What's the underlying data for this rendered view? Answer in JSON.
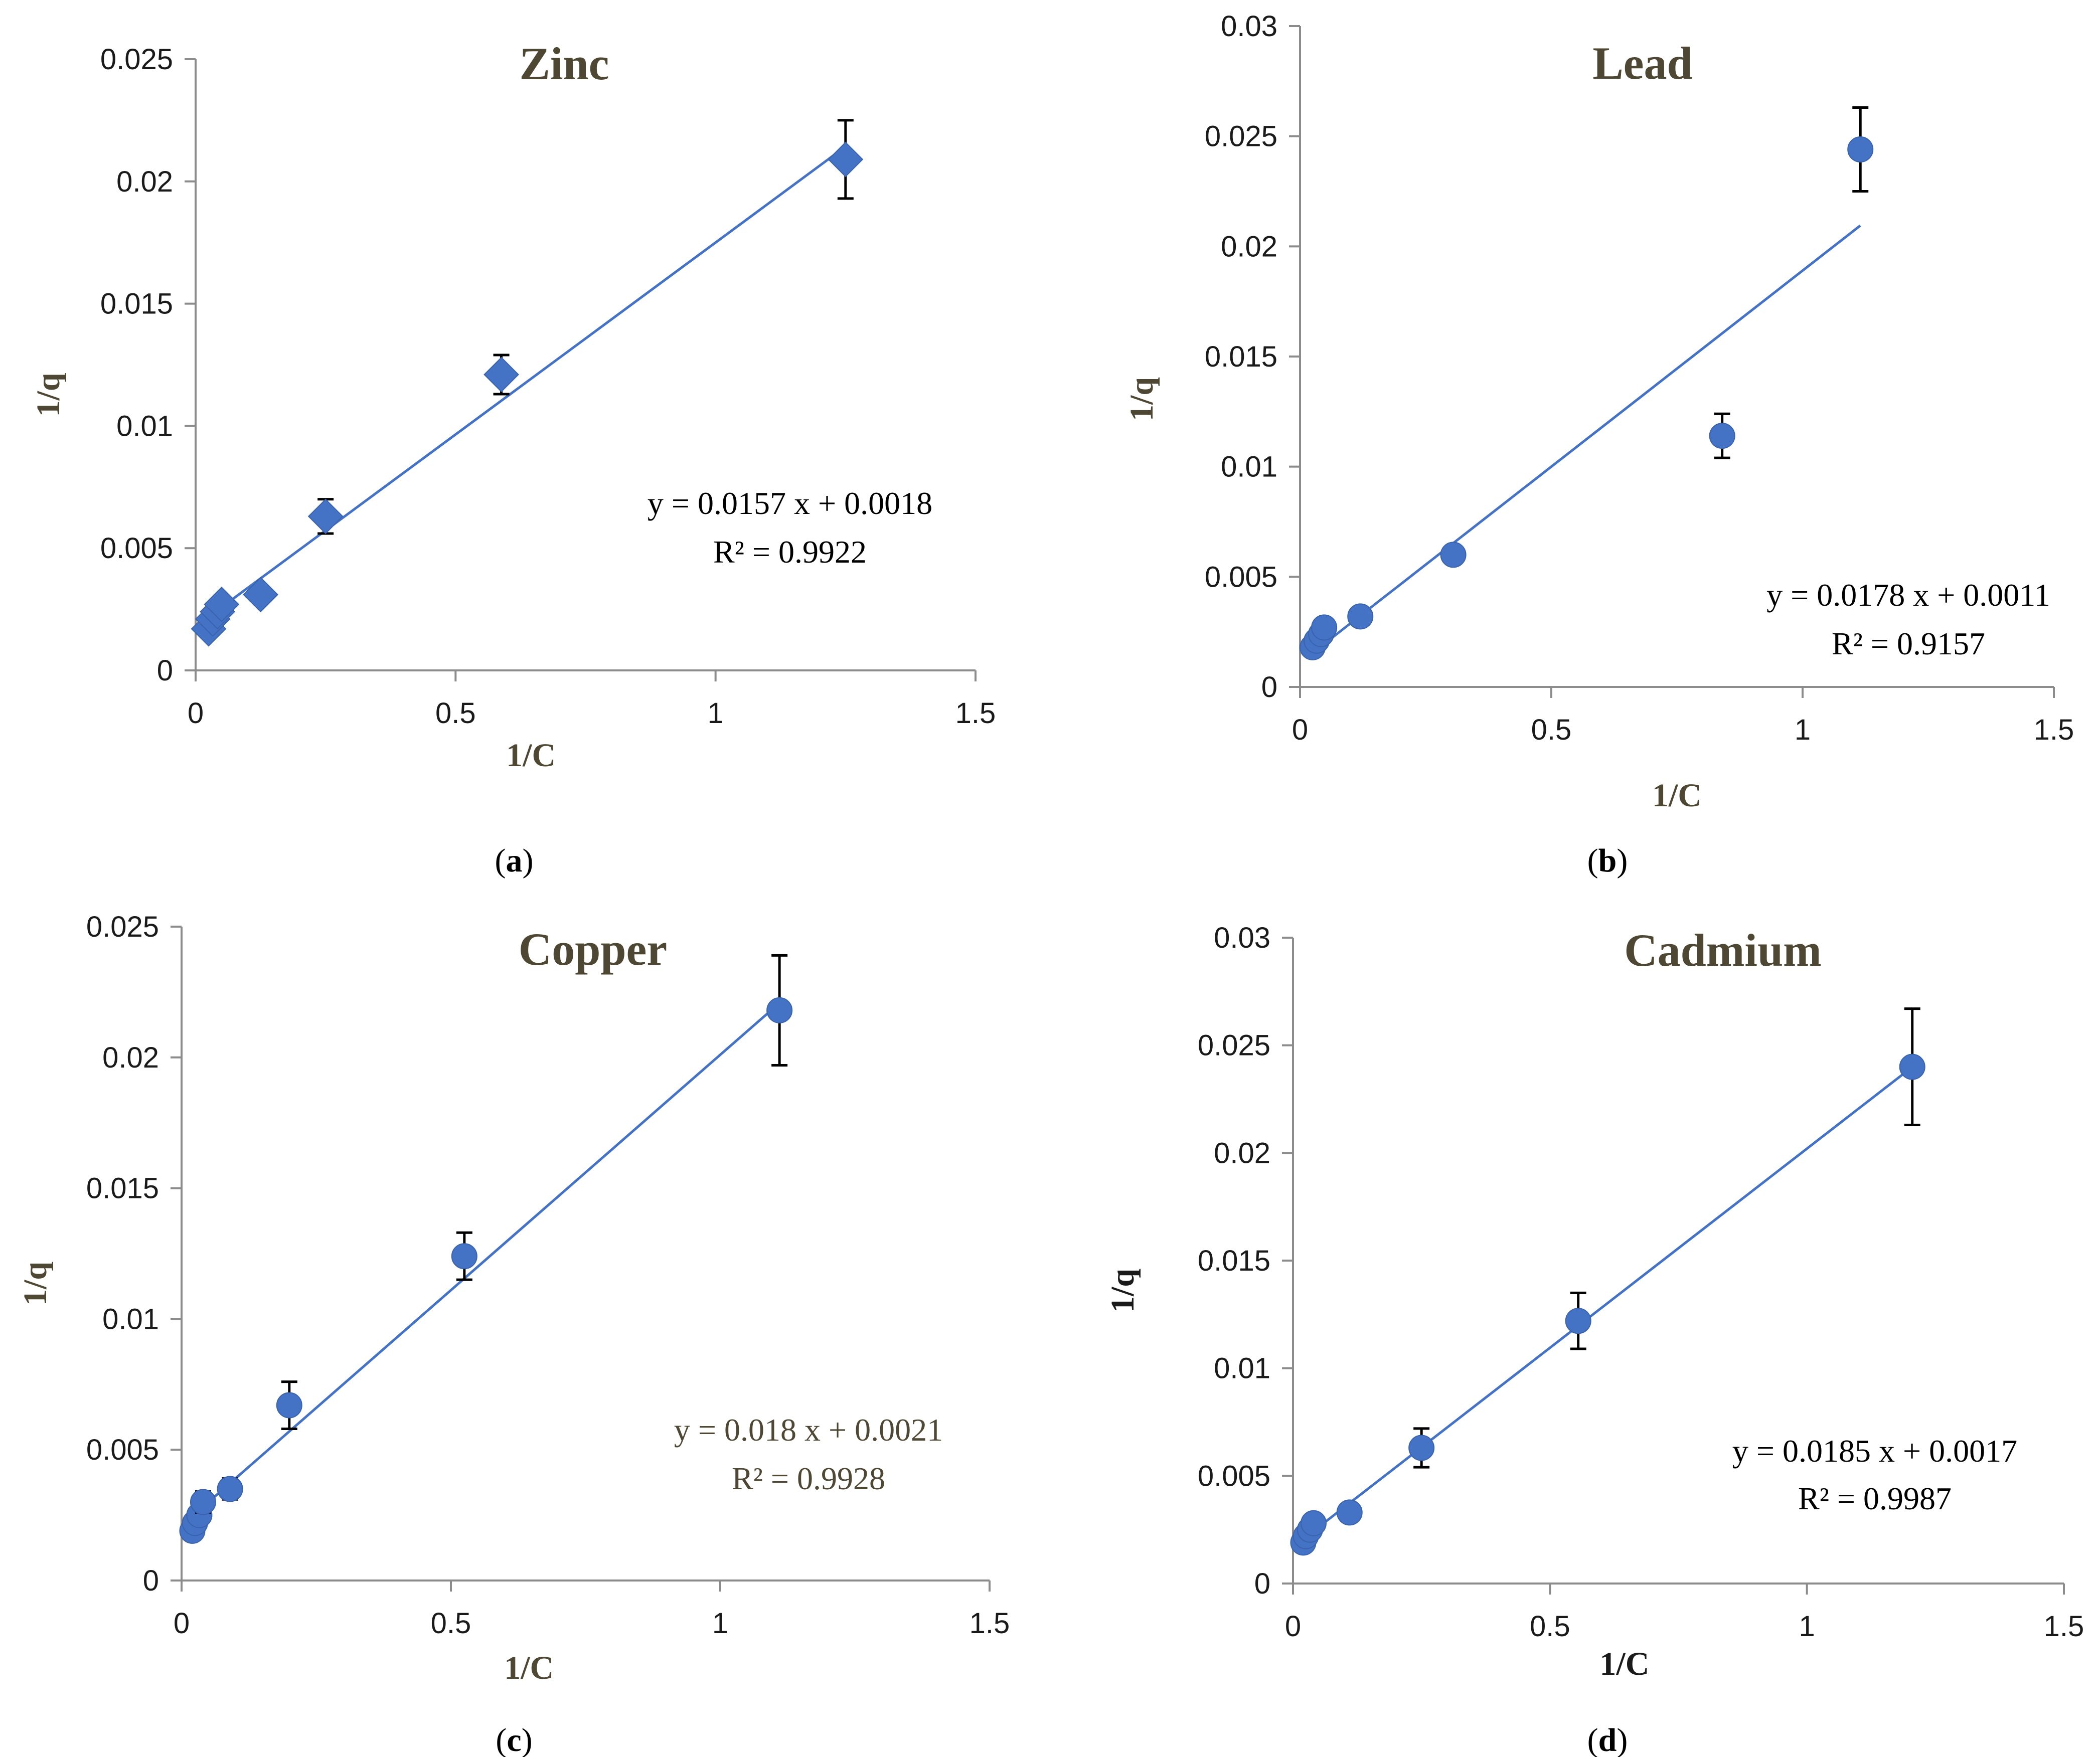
{
  "colors": {
    "marker": "#4472C4",
    "trend": "#4472C4",
    "axis": "#8c8c8c",
    "error": "#000000",
    "title": "#4d4733"
  },
  "chart_data": [
    {
      "type": "scatter",
      "panel": "a",
      "caption_open": "(",
      "caption_letter": "a",
      "caption_close": ")",
      "title": "Zinc",
      "xlabel": "1/C",
      "ylabel": "1/q",
      "marker": "diamond",
      "label_color": "#4d4733",
      "eq_color": "#000000",
      "xlim": [
        0,
        1.5
      ],
      "ylim": [
        0,
        0.025
      ],
      "xticks": [
        "0",
        "0.5",
        "1",
        "1.5"
      ],
      "yticks": [
        "0",
        "0.005",
        "0.01",
        "0.015",
        "0.02",
        "0.025"
      ],
      "x": [
        0.025,
        0.033,
        0.042,
        0.05,
        0.125,
        0.25,
        0.588,
        1.25
      ],
      "y": [
        0.0017,
        0.0021,
        0.0024,
        0.0027,
        0.0031,
        0.0063,
        0.0121,
        0.0209
      ],
      "error": [
        0.0001,
        0.0001,
        0.0001,
        0.0001,
        0.0003,
        0.0007,
        0.0008,
        0.0016
      ],
      "trendline": {
        "slope": 0.0157,
        "intercept": 0.0018,
        "x_range": [
          0,
          1.25
        ]
      },
      "equation": "y = 0.0157 x + 0.0018",
      "r2": "R² = 0.9922"
    },
    {
      "type": "scatter",
      "panel": "b",
      "caption_open": "(",
      "caption_letter": "b",
      "caption_close": ")",
      "title": "Lead",
      "xlabel": "1/C",
      "ylabel": "1/q",
      "marker": "circle",
      "label_color": "#4d4733",
      "eq_color": "#000000",
      "xlim": [
        0,
        1.5
      ],
      "ylim": [
        0,
        0.03
      ],
      "xticks": [
        "0",
        "0.5",
        "1",
        "1.5"
      ],
      "yticks": [
        "0",
        "0.005",
        "0.01",
        "0.015",
        "0.02",
        "0.025",
        "0.03"
      ],
      "x": [
        0.025,
        0.033,
        0.042,
        0.048,
        0.12,
        0.305,
        0.84,
        1.115
      ],
      "y": [
        0.0018,
        0.0021,
        0.0024,
        0.0027,
        0.0032,
        0.006,
        0.0114,
        0.0244
      ],
      "error": [
        0.0001,
        0.0001,
        0.0001,
        0.0001,
        0.0003,
        0.0004,
        0.001,
        0.0019
      ],
      "trendline": {
        "slope": 0.0178,
        "intercept": 0.0011,
        "x_range": [
          0.02,
          1.115
        ]
      },
      "equation": "y = 0.0178 x + 0.0011",
      "r2": "R² = 0.9157"
    },
    {
      "type": "scatter",
      "panel": "c",
      "caption_open": "(",
      "caption_letter": "c",
      "caption_close": ")",
      "title": "Copper",
      "xlabel": "1/C",
      "ylabel": "1/q",
      "marker": "circle",
      "label_color": "#4d4733",
      "eq_color": "#4d4733",
      "xlim": [
        0,
        1.5
      ],
      "ylim": [
        0,
        0.025
      ],
      "xticks": [
        "0",
        "0.5",
        "1",
        "1.5"
      ],
      "yticks": [
        "0",
        "0.005",
        "0.01",
        "0.015",
        "0.02",
        "0.025"
      ],
      "x": [
        0.02,
        0.025,
        0.033,
        0.04,
        0.09,
        0.2,
        0.525,
        1.11
      ],
      "y": [
        0.0019,
        0.0022,
        0.0025,
        0.003,
        0.0035,
        0.0067,
        0.0124,
        0.0218
      ],
      "error": [
        0.0002,
        0.0002,
        0.0002,
        0.0004,
        0.0004,
        0.0009,
        0.0009,
        0.0021
      ],
      "trendline": {
        "slope": 0.018,
        "intercept": 0.0021,
        "x_range": [
          0,
          1.11
        ]
      },
      "equation": "y = 0.018 x + 0.0021",
      "r2": "R² = 0.9928"
    },
    {
      "type": "scatter",
      "panel": "d",
      "caption_open": "(",
      "caption_letter": "d",
      "caption_close": ")",
      "title": "Cadmium",
      "xlabel": "1/C",
      "ylabel": "1/q",
      "marker": "circle",
      "label_color": "#1a1a1a",
      "eq_color": "#000000",
      "xlim": [
        0,
        1.5
      ],
      "ylim": [
        0,
        0.03
      ],
      "xticks": [
        "0",
        "0.5",
        "1",
        "1.5"
      ],
      "yticks": [
        "0",
        "0.005",
        "0.01",
        "0.015",
        "0.02",
        "0.025",
        "0.03"
      ],
      "x": [
        0.02,
        0.025,
        0.033,
        0.04,
        0.11,
        0.25,
        0.555,
        1.205
      ],
      "y": [
        0.0019,
        0.0022,
        0.0025,
        0.0028,
        0.0033,
        0.0063,
        0.0122,
        0.024
      ],
      "error": [
        0.0001,
        0.0001,
        0.0001,
        0.0002,
        0.0003,
        0.0009,
        0.0013,
        0.0027
      ],
      "trendline": {
        "slope": 0.0185,
        "intercept": 0.0017,
        "x_range": [
          0.01,
          1.205
        ]
      },
      "equation": "y = 0.0185 x + 0.0017",
      "r2": "R² = 0.9987"
    }
  ]
}
